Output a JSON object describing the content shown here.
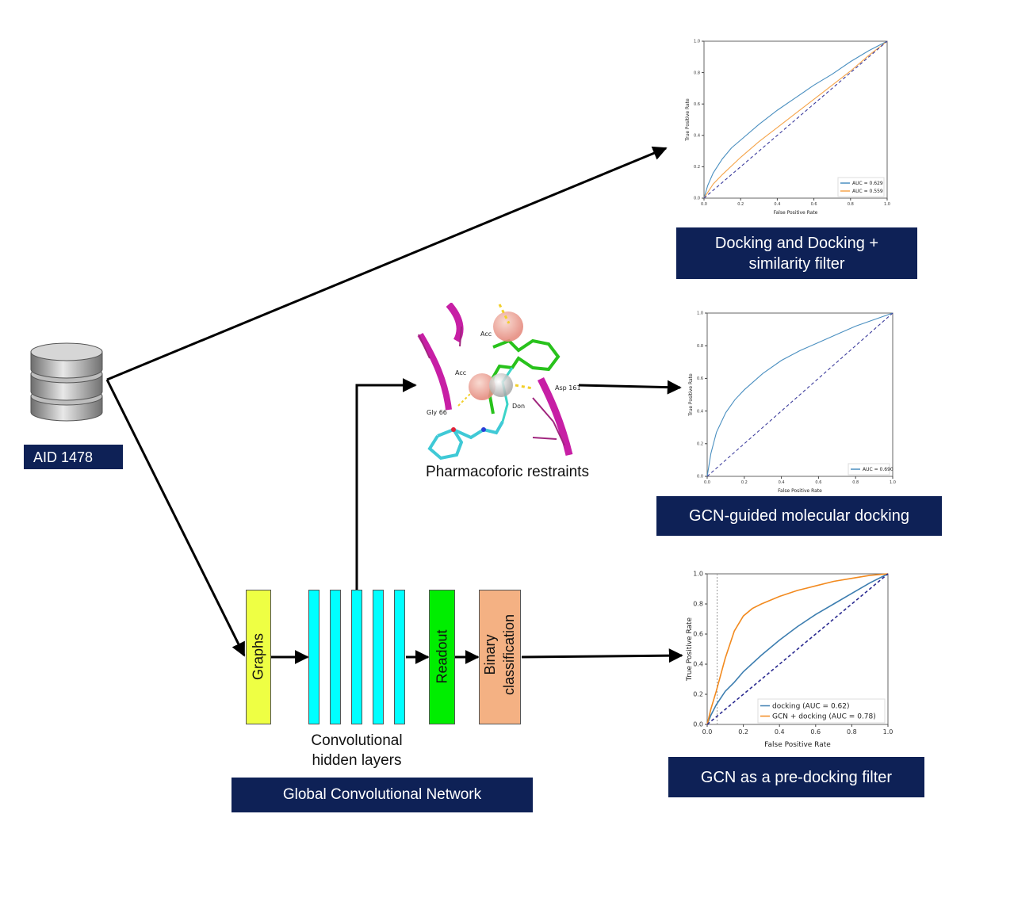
{
  "database": {
    "label": "AID 1478",
    "icon": "database-icon"
  },
  "pipeline": {
    "graphs_label": "Graphs",
    "conv_label_line1": "Convolutional",
    "conv_label_line2": "hidden layers",
    "readout_label": "Readout",
    "binary_line1": "Binary",
    "binary_line2": "classification",
    "network_box": "Global Convolutional Network",
    "colors": {
      "graphs": "#eeff44",
      "conv": "#00ffff",
      "readout": "#00ee00",
      "binary": "#f4b183"
    }
  },
  "pharmacophore": {
    "caption": "Pharmacoforic restraints",
    "labels": [
      "Acc",
      "Acc",
      "Don",
      "Asp 161",
      "Gly 66"
    ]
  },
  "panels": [
    {
      "title_line1": "Docking and Docking +",
      "title_line2": "similarity filter"
    },
    {
      "title": "GCN-guided molecular docking"
    },
    {
      "title": "GCN as a pre-docking filter"
    }
  ],
  "chart_data": [
    {
      "type": "line",
      "xlabel": "False Positive Rate",
      "ylabel": "True Positive Rate",
      "xlim": [
        0,
        1
      ],
      "ylim": [
        0,
        1
      ],
      "ticks": [
        "0.0",
        "0.2",
        "0.4",
        "0.6",
        "0.8",
        "1.0"
      ],
      "legend": "bottom-right",
      "series": [
        {
          "name": "AUC = 0.629",
          "color": "#4a8fc0",
          "x": [
            0,
            0.02,
            0.05,
            0.1,
            0.15,
            0.2,
            0.3,
            0.4,
            0.5,
            0.6,
            0.7,
            0.8,
            0.9,
            1.0
          ],
          "y": [
            0,
            0.08,
            0.16,
            0.25,
            0.32,
            0.37,
            0.47,
            0.56,
            0.64,
            0.72,
            0.79,
            0.87,
            0.94,
            1.0
          ]
        },
        {
          "name": "AUC = 0.559",
          "color": "#f5a44a",
          "x": [
            0,
            0.05,
            0.1,
            0.2,
            0.3,
            0.4,
            0.5,
            0.6,
            0.7,
            0.8,
            0.9,
            1.0
          ],
          "y": [
            0,
            0.09,
            0.15,
            0.26,
            0.36,
            0.45,
            0.54,
            0.63,
            0.72,
            0.81,
            0.91,
            1.0
          ]
        },
        {
          "name": "",
          "color": "#3b3b9c",
          "dashed": true,
          "x": [
            0,
            1
          ],
          "y": [
            0,
            1
          ]
        }
      ]
    },
    {
      "type": "line",
      "xlabel": "False Positive Rate",
      "ylabel": "True Positive Rate",
      "xlim": [
        0,
        1
      ],
      "ylim": [
        0,
        1
      ],
      "ticks": [
        "0.0",
        "0.2",
        "0.4",
        "0.6",
        "0.8",
        "1.0"
      ],
      "legend": "bottom-right",
      "series": [
        {
          "name": "AUC = 0.690",
          "color": "#4a8fc0",
          "x": [
            0,
            0.02,
            0.05,
            0.1,
            0.15,
            0.2,
            0.3,
            0.4,
            0.5,
            0.6,
            0.7,
            0.8,
            0.9,
            1.0
          ],
          "y": [
            0,
            0.14,
            0.27,
            0.39,
            0.47,
            0.53,
            0.63,
            0.71,
            0.77,
            0.82,
            0.87,
            0.92,
            0.96,
            1.0
          ]
        },
        {
          "name": "",
          "color": "#3b3b9c",
          "dashed": true,
          "x": [
            0,
            1
          ],
          "y": [
            0,
            1
          ]
        }
      ]
    },
    {
      "type": "line",
      "xlabel": "False Positive Rate",
      "ylabel": "True Positive Rate",
      "xlim": [
        0,
        1
      ],
      "ylim": [
        0,
        1
      ],
      "ticks": [
        "0.0",
        "0.2",
        "0.4",
        "0.6",
        "0.8",
        "1.0"
      ],
      "legend": "bottom-right",
      "series": [
        {
          "name": "docking (AUC = 0.62)",
          "color": "#3d7eb0",
          "x": [
            0,
            0.02,
            0.05,
            0.1,
            0.15,
            0.2,
            0.3,
            0.4,
            0.5,
            0.6,
            0.7,
            0.8,
            0.9,
            1.0
          ],
          "y": [
            0,
            0.06,
            0.13,
            0.22,
            0.28,
            0.35,
            0.46,
            0.56,
            0.65,
            0.73,
            0.8,
            0.87,
            0.94,
            1.0
          ]
        },
        {
          "name": "GCN + docking (AUC = 0.78)",
          "color": "#f28a1f",
          "x": [
            0,
            0.02,
            0.05,
            0.1,
            0.15,
            0.2,
            0.25,
            0.3,
            0.4,
            0.5,
            0.6,
            0.7,
            0.8,
            0.9,
            1.0
          ],
          "y": [
            0,
            0.1,
            0.22,
            0.44,
            0.62,
            0.72,
            0.77,
            0.8,
            0.85,
            0.89,
            0.92,
            0.95,
            0.97,
            0.99,
            1.0
          ]
        },
        {
          "name": "",
          "color": "#2a2a90",
          "dashed": true,
          "x": [
            0,
            1
          ],
          "y": [
            0,
            1
          ]
        }
      ]
    }
  ]
}
